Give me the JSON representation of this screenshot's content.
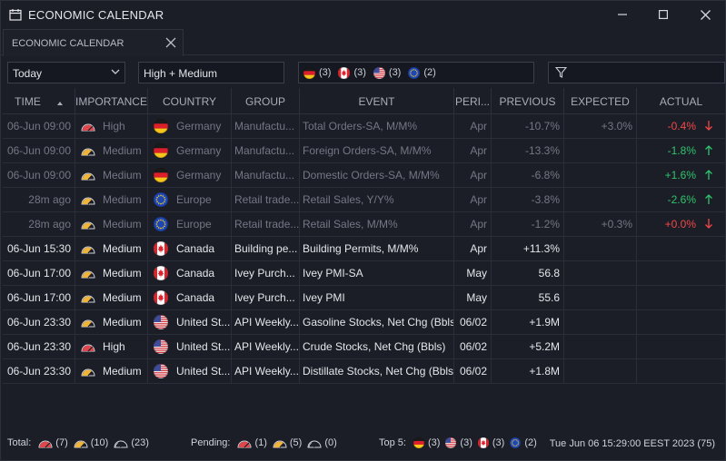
{
  "window": {
    "title": "ECONOMIC CALENDAR"
  },
  "tab": {
    "label": "ECONOMIC CALENDAR"
  },
  "filters": {
    "date": "Today",
    "importance": "High + Medium",
    "countries": [
      {
        "flag": "germany",
        "count": "(3)"
      },
      {
        "flag": "canada",
        "count": "(3)"
      },
      {
        "flag": "usa",
        "count": "(3)"
      },
      {
        "flag": "eu",
        "count": "(2)"
      }
    ],
    "search_value": ""
  },
  "columns": {
    "time": "TIME",
    "importance": "IMPORTANCE",
    "country": "COUNTRY",
    "group": "GROUP",
    "event": "EVENT",
    "period": "PERI...",
    "previous": "PREVIOUS",
    "expected": "EXPECTED",
    "actual": "ACTUAL"
  },
  "rows": [
    {
      "state": "past",
      "time": "06-Jun 09:00",
      "importance": "High",
      "imp_level": "high",
      "flag": "germany",
      "country": "Germany",
      "group": "Manufactu...",
      "event": "Total Orders-SA, M/M%",
      "period": "Apr",
      "previous": "-10.7%",
      "expected": "+3.0%",
      "actual": "-0.4%",
      "trend": "down"
    },
    {
      "state": "past",
      "time": "06-Jun 09:00",
      "importance": "Medium",
      "imp_level": "medium",
      "flag": "germany",
      "country": "Germany",
      "group": "Manufactu...",
      "event": "Foreign Orders-SA, M/M%",
      "period": "Apr",
      "previous": "-13.3%",
      "expected": "",
      "actual": "-1.8%",
      "trend": "up"
    },
    {
      "state": "past",
      "time": "06-Jun 09:00",
      "importance": "Medium",
      "imp_level": "medium",
      "flag": "germany",
      "country": "Germany",
      "group": "Manufactu...",
      "event": "Domestic Orders-SA, M/M%",
      "period": "Apr",
      "previous": "-6.8%",
      "expected": "",
      "actual": "+1.6%",
      "trend": "up"
    },
    {
      "state": "past",
      "time": "28m ago",
      "importance": "Medium",
      "imp_level": "medium",
      "flag": "eu",
      "country": "Europe",
      "group": "Retail trade...",
      "event": "Retail Sales, Y/Y%",
      "period": "Apr",
      "previous": "-3.8%",
      "expected": "",
      "actual": "-2.6%",
      "trend": "up"
    },
    {
      "state": "past",
      "time": "28m ago",
      "importance": "Medium",
      "imp_level": "medium",
      "flag": "eu",
      "country": "Europe",
      "group": "Retail trade...",
      "event": "Retail Sales, M/M%",
      "period": "Apr",
      "previous": "-1.2%",
      "expected": "+0.3%",
      "actual": "+0.0%",
      "trend": "down"
    },
    {
      "state": "upc",
      "time": "06-Jun 15:30",
      "importance": "Medium",
      "imp_level": "medium",
      "flag": "canada",
      "country": "Canada",
      "group": "Building pe...",
      "event": "Building Permits, M/M%",
      "period": "Apr",
      "previous": "+11.3%",
      "expected": "",
      "actual": "",
      "trend": ""
    },
    {
      "state": "upc",
      "time": "06-Jun 17:00",
      "importance": "Medium",
      "imp_level": "medium",
      "flag": "canada",
      "country": "Canada",
      "group": "Ivey Purch...",
      "event": "Ivey PMI-SA",
      "period": "May",
      "previous": "56.8",
      "expected": "",
      "actual": "",
      "trend": ""
    },
    {
      "state": "upc",
      "time": "06-Jun 17:00",
      "importance": "Medium",
      "imp_level": "medium",
      "flag": "canada",
      "country": "Canada",
      "group": "Ivey Purch...",
      "event": "Ivey PMI",
      "period": "May",
      "previous": "55.6",
      "expected": "",
      "actual": "",
      "trend": ""
    },
    {
      "state": "upc",
      "time": "06-Jun 23:30",
      "importance": "Medium",
      "imp_level": "medium",
      "flag": "usa",
      "country": "United St...",
      "group": "API Weekly...",
      "event": "Gasoline Stocks, Net Chg (Bbls)",
      "period": "06/02",
      "previous": "+1.9M",
      "expected": "",
      "actual": "",
      "trend": ""
    },
    {
      "state": "upc",
      "time": "06-Jun 23:30",
      "importance": "High",
      "imp_level": "high",
      "flag": "usa",
      "country": "United St...",
      "group": "API Weekly...",
      "event": "Crude Stocks, Net Chg (Bbls)",
      "period": "06/02",
      "previous": "+5.2M",
      "expected": "",
      "actual": "",
      "trend": ""
    },
    {
      "state": "upc",
      "time": "06-Jun 23:30",
      "importance": "Medium",
      "imp_level": "medium",
      "flag": "usa",
      "country": "United St...",
      "group": "API Weekly...",
      "event": "Distillate Stocks, Net Chg (Bbls)",
      "period": "06/02",
      "previous": "+1.8M",
      "expected": "",
      "actual": "",
      "trend": ""
    }
  ],
  "footer": {
    "total_label": "Total:",
    "total": {
      "high": "(7)",
      "medium": "(10)",
      "low": "(23)"
    },
    "pending_label": "Pending:",
    "pending": {
      "high": "(1)",
      "medium": "(5)",
      "low": "(0)"
    },
    "top_label": "Top 5:",
    "top": [
      {
        "flag": "germany",
        "count": "(3)"
      },
      {
        "flag": "usa",
        "count": "(3)"
      },
      {
        "flag": "canada",
        "count": "(3)"
      },
      {
        "flag": "eu",
        "count": "(2)"
      }
    ],
    "clock": "Tue Jun 06 15:29:00 EEST 2023 (75)"
  },
  "colors": {
    "background": "#1b1e27",
    "positive": "#2fc46b",
    "negative": "#f04848",
    "importance_high": "#e0474c",
    "importance_medium": "#f0b43a"
  }
}
